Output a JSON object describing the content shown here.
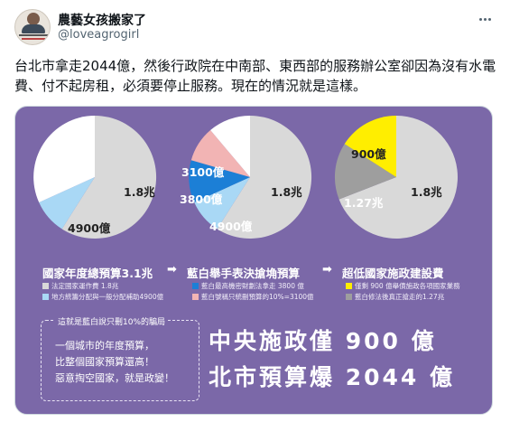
{
  "author": {
    "name": "農藝女孩搬家了",
    "handle": "@loveagrogirl"
  },
  "tweet_text": "台北市拿走2044億，然後行政院在中南部、東西部的服務辦公室卻因為沒有水電費、付不起房租，必須要停止服務。現在的情況就是這樣。",
  "infographic": {
    "pie1": {
      "big_label": "1.8兆",
      "small_label": "4900億"
    },
    "pie2": {
      "big_label": "1.8兆",
      "labels": [
        "3100億",
        "3800億",
        "4900億"
      ]
    },
    "pie3": {
      "big_label": "1.8兆",
      "mid_label": "1.27兆",
      "small_label": "900億"
    },
    "captions": [
      "國家年度總預算3.1兆",
      "藍白舉手表決搶埆預算",
      "超低國家施政建設費"
    ],
    "arrows": [
      "➡",
      "➡"
    ],
    "legend1": [
      "法定國家運作費 1.8兆",
      "地方統籌分配與一般分配補助4900億"
    ],
    "legend2": [
      "藍白最高機密財劃法拿走 3800 億",
      "藍白號稱只統刪預算的10%=3100億"
    ],
    "legend3": [
      "僅剩 900 億舉債施政各項國家業務",
      "藍白修法後真正搶走的1.27兆"
    ],
    "note_title": "這就是藍白說只刪10%的騙局",
    "note_lines": [
      "一個城市的年度預算，",
      "比整個國家預算還高！",
      "惡意掏空國家，就是政變！"
    ],
    "headline_1": "中央施政僅 900 億",
    "headline_2": "北市預算爆 2044 億",
    "colors": {
      "background": "#7b68a8",
      "gray": "#d9d9d9",
      "dark_gray": "#9e9e9e",
      "white": "#ffffff",
      "light_blue": "#a9d8f5",
      "blue": "#1c7fd6",
      "pink": "#f2b4b4",
      "yellow": "#ffee00"
    },
    "icons": [
      "more-options-icon",
      "avatar"
    ]
  }
}
